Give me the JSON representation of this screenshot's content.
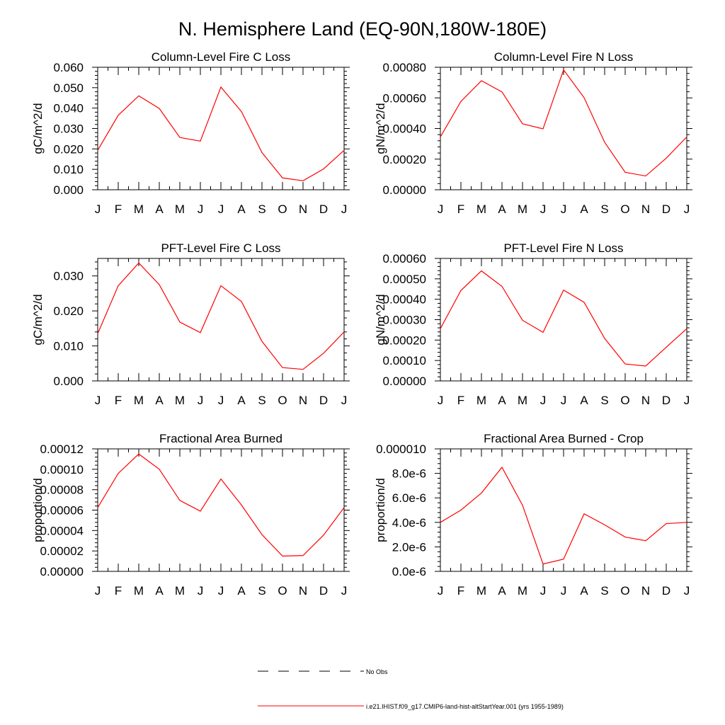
{
  "figure": {
    "title": "N. Hemisphere Land (EQ-90N,180W-180E)"
  },
  "legend": {
    "items": [
      {
        "label": "No Obs",
        "style": "dashed",
        "color": "#000000"
      },
      {
        "label": "i.e21.IHIST.f09_g17.CMIP6-land-hist-altStartYear.001 (yrs 1955-1989)",
        "style": "solid",
        "color": "#ff0000"
      }
    ]
  },
  "chart_data": [
    {
      "type": "line",
      "title": "Column-Level Fire C Loss",
      "ylabel": "gC/m^2/d",
      "x": [
        "J",
        "F",
        "M",
        "A",
        "M",
        "J",
        "J",
        "A",
        "S",
        "O",
        "N",
        "D",
        "J"
      ],
      "ylim": [
        0,
        0.06
      ],
      "yticks": [
        0,
        0.01,
        0.02,
        0.03,
        0.04,
        0.05,
        0.06
      ],
      "ytick_labels": [
        "0.000",
        "0.010",
        "0.020",
        "0.030",
        "0.040",
        "0.050",
        "0.060"
      ],
      "series": [
        {
          "color": "#ff0000",
          "values": [
            0.0193,
            0.0365,
            0.046,
            0.0398,
            0.0256,
            0.0238,
            0.0503,
            0.0383,
            0.0182,
            0.0058,
            0.0044,
            0.0102,
            0.0193
          ]
        }
      ]
    },
    {
      "type": "line",
      "title": "Column-Level Fire N Loss",
      "ylabel": "gN/m^2/d",
      "x": [
        "J",
        "F",
        "M",
        "A",
        "M",
        "J",
        "J",
        "A",
        "S",
        "O",
        "N",
        "D",
        "J"
      ],
      "ylim": [
        0,
        0.0008
      ],
      "yticks": [
        0,
        0.0002,
        0.0004,
        0.0006,
        0.0008
      ],
      "ytick_labels": [
        "0.00000",
        "0.00020",
        "0.00040",
        "0.00060",
        "0.00080"
      ],
      "series": [
        {
          "color": "#ff0000",
          "values": [
            0.000345,
            0.000577,
            0.000712,
            0.000639,
            0.000431,
            0.000398,
            0.000783,
            0.000601,
            0.00031,
            0.000114,
            9e-05,
            0.000206,
            0.000345
          ]
        }
      ]
    },
    {
      "type": "line",
      "title": "PFT-Level Fire C Loss",
      "ylabel": "gC/m^2/d",
      "x": [
        "J",
        "F",
        "M",
        "A",
        "M",
        "J",
        "J",
        "A",
        "S",
        "O",
        "N",
        "D",
        "J"
      ],
      "ylim": [
        0,
        0.035
      ],
      "yticks": [
        0,
        0.01,
        0.02,
        0.03
      ],
      "ytick_labels": [
        "0.000",
        "0.010",
        "0.020",
        "0.030"
      ],
      "series": [
        {
          "color": "#ff0000",
          "values": [
            0.0135,
            0.0272,
            0.0337,
            0.0275,
            0.0168,
            0.0138,
            0.0272,
            0.0227,
            0.0113,
            0.0038,
            0.0033,
            0.0079,
            0.014
          ]
        }
      ]
    },
    {
      "type": "line",
      "title": "PFT-Level Fire N Loss",
      "ylabel": "gN/m^2/d",
      "x": [
        "J",
        "F",
        "M",
        "A",
        "M",
        "J",
        "J",
        "A",
        "S",
        "O",
        "N",
        "D",
        "J"
      ],
      "ylim": [
        0,
        0.0006
      ],
      "yticks": [
        0,
        0.0001,
        0.0002,
        0.0003,
        0.0004,
        0.0005,
        0.0006
      ],
      "ytick_labels": [
        "0.00000",
        "0.00010",
        "0.00020",
        "0.00030",
        "0.00040",
        "0.00050",
        "0.00060"
      ],
      "series": [
        {
          "color": "#ff0000",
          "values": [
            0.000256,
            0.000443,
            0.000539,
            0.000463,
            0.000297,
            0.000238,
            0.000445,
            0.000385,
            0.000208,
            8.3e-05,
            7.3e-05,
            0.000165,
            0.000256
          ]
        }
      ]
    },
    {
      "type": "line",
      "title": "Fractional Area Burned",
      "ylabel": "proportion/d",
      "x": [
        "J",
        "F",
        "M",
        "A",
        "M",
        "J",
        "J",
        "A",
        "S",
        "O",
        "N",
        "D",
        "J"
      ],
      "ylim": [
        0,
        0.00012
      ],
      "yticks": [
        0,
        2e-05,
        4e-05,
        6e-05,
        8e-05,
        0.0001,
        0.00012
      ],
      "ytick_labels": [
        "0.00000",
        "0.00002",
        "0.00004",
        "0.00006",
        "0.00008",
        "0.00010",
        "0.00012"
      ],
      "series": [
        {
          "color": "#ff0000",
          "values": [
            6.25e-05,
            9.6e-05,
            0.000115,
            0.0001,
            6.95e-05,
            5.9e-05,
            9.05e-05,
            6.5e-05,
            3.6e-05,
            1.5e-05,
            1.55e-05,
            3.55e-05,
            6.25e-05
          ]
        }
      ]
    },
    {
      "type": "line",
      "title": "Fractional Area Burned - Crop",
      "ylabel": "proportion/d",
      "x": [
        "J",
        "F",
        "M",
        "A",
        "M",
        "J",
        "J",
        "A",
        "S",
        "O",
        "N",
        "D",
        "J"
      ],
      "ylim": [
        0,
        1e-05
      ],
      "yticks": [
        0,
        2e-06,
        4e-06,
        6e-06,
        8e-06,
        1e-05
      ],
      "ytick_labels": [
        "0.0e-6",
        "2.0e-6",
        "4.0e-6",
        "6.0e-6",
        "8.0e-6",
        "0.000010"
      ],
      "series": [
        {
          "color": "#ff0000",
          "values": [
            4e-06,
            5e-06,
            6.4e-06,
            8.5e-06,
            5.4e-06,
            6e-07,
            1e-06,
            4.7e-06,
            3.8e-06,
            2.8e-06,
            2.5e-06,
            3.9e-06,
            4e-06
          ]
        }
      ]
    }
  ]
}
